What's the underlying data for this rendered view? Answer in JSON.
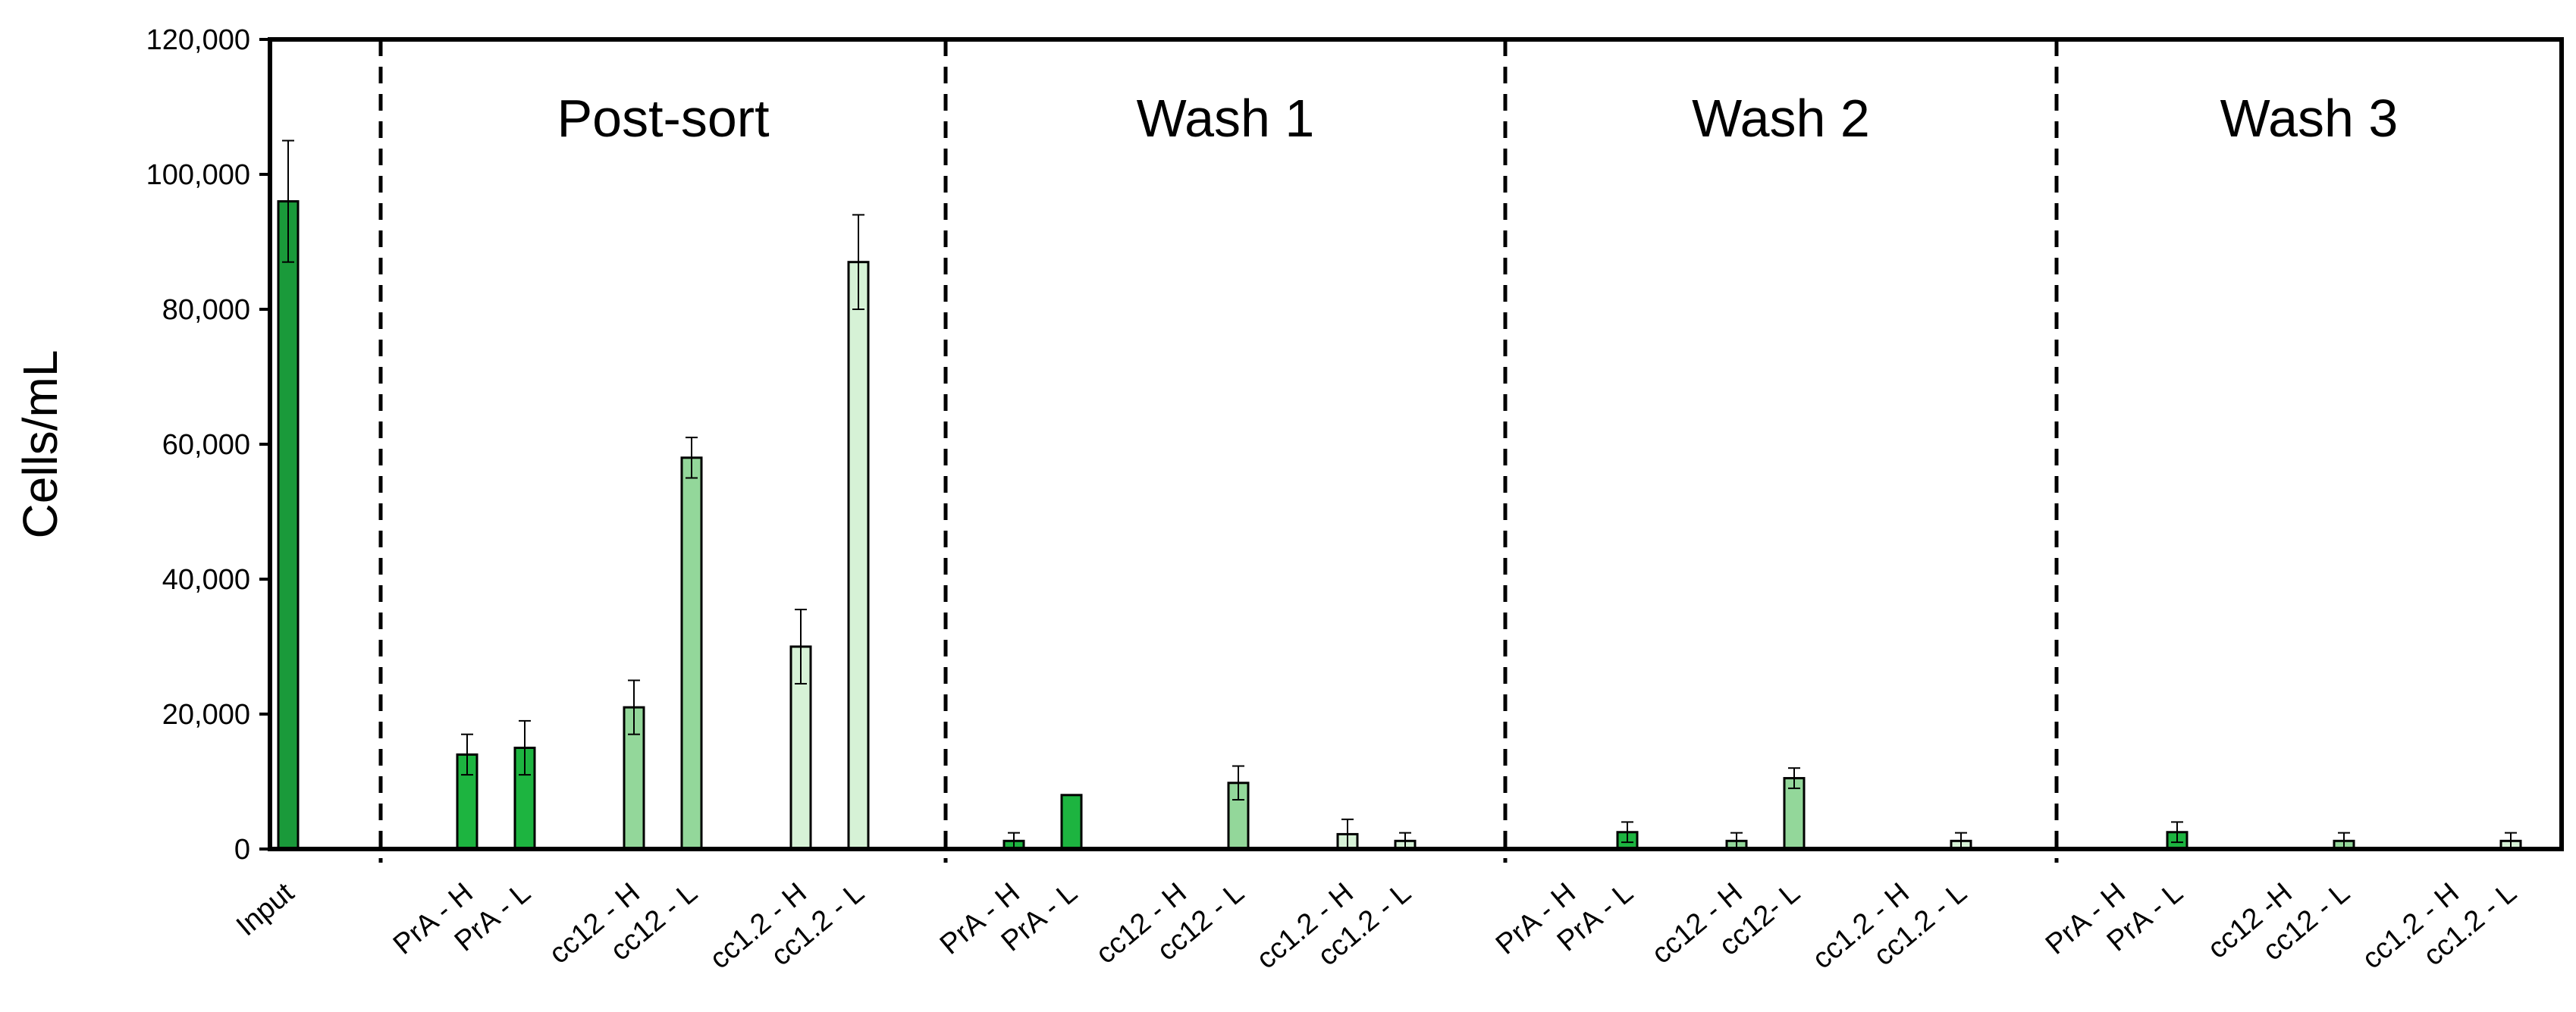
{
  "chart_data": {
    "type": "bar",
    "title": "",
    "xlabel": "",
    "ylabel": "Cells/mL",
    "ylim": [
      0,
      120000
    ],
    "yticks": [
      0,
      20000,
      40000,
      60000,
      80000,
      100000,
      120000
    ],
    "ytick_labels": [
      "0",
      "20,000",
      "40,000",
      "60,000",
      "80,000",
      "100,000",
      "120,000"
    ],
    "grid": false,
    "colors": {
      "dark_green": "#1a9a3a",
      "mid_green": "#1db440",
      "light_green": "#93d79a",
      "pale_green": "#d6f2d6"
    },
    "groups": [
      {
        "title": "",
        "bars": [
          {
            "label": "Input",
            "value": 96000,
            "error": 9000,
            "color": "dark_green"
          }
        ]
      },
      {
        "title": "Post-sort",
        "bars": [
          {
            "label": "PrA - H",
            "value": 14000,
            "error": 3000,
            "color": "mid_green"
          },
          {
            "label": "PrA - L",
            "value": 15000,
            "error": 4000,
            "color": "mid_green"
          },
          {
            "label": "cc12 - H",
            "value": 21000,
            "error": 4000,
            "color": "light_green"
          },
          {
            "label": "cc12 - L",
            "value": 58000,
            "error": 3000,
            "color": "light_green"
          },
          {
            "label": "cc1.2 - H",
            "value": 30000,
            "error": 5500,
            "color": "pale_green"
          },
          {
            "label": "cc1.2 - L",
            "value": 87000,
            "error": 7000,
            "color": "pale_green"
          }
        ]
      },
      {
        "title": "Wash 1",
        "bars": [
          {
            "label": "PrA - H",
            "value": 1200,
            "error": 1200,
            "color": "mid_green"
          },
          {
            "label": "PrA - L",
            "value": 8000,
            "error": 0,
            "color": "mid_green"
          },
          {
            "label": "cc12 - H",
            "value": 0,
            "error": 0,
            "color": "light_green"
          },
          {
            "label": "cc12 - L",
            "value": 9800,
            "error": 2500,
            "color": "light_green"
          },
          {
            "label": "cc1.2 - H",
            "value": 2200,
            "error": 2200,
            "color": "pale_green"
          },
          {
            "label": "cc1.2 - L",
            "value": 1200,
            "error": 1200,
            "color": "pale_green"
          }
        ]
      },
      {
        "title": "Wash 2",
        "bars": [
          {
            "label": "PrA - H",
            "value": 0,
            "error": 0,
            "color": "mid_green"
          },
          {
            "label": "PrA - L",
            "value": 2500,
            "error": 1500,
            "color": "mid_green"
          },
          {
            "label": "cc12 - H",
            "value": 1200,
            "error": 1200,
            "color": "light_green"
          },
          {
            "label": "cc12- L",
            "value": 10500,
            "error": 1500,
            "color": "light_green"
          },
          {
            "label": "cc1.2 - H",
            "value": 0,
            "error": 0,
            "color": "pale_green"
          },
          {
            "label": "cc1.2 - L",
            "value": 1200,
            "error": 1200,
            "color": "pale_green"
          }
        ]
      },
      {
        "title": "Wash 3",
        "bars": [
          {
            "label": "PrA - H",
            "value": 0,
            "error": 0,
            "color": "mid_green"
          },
          {
            "label": "PrA - L",
            "value": 2500,
            "error": 1500,
            "color": "mid_green"
          },
          {
            "label": "cc12 -H",
            "value": 0,
            "error": 0,
            "color": "light_green"
          },
          {
            "label": "cc12 - L",
            "value": 1200,
            "error": 1200,
            "color": "light_green"
          },
          {
            "label": "cc1.2 - H",
            "value": 0,
            "error": 0,
            "color": "pale_green"
          },
          {
            "label": "cc1.2 - L",
            "value": 1200,
            "error": 1200,
            "color": "pale_green"
          }
        ]
      }
    ]
  }
}
